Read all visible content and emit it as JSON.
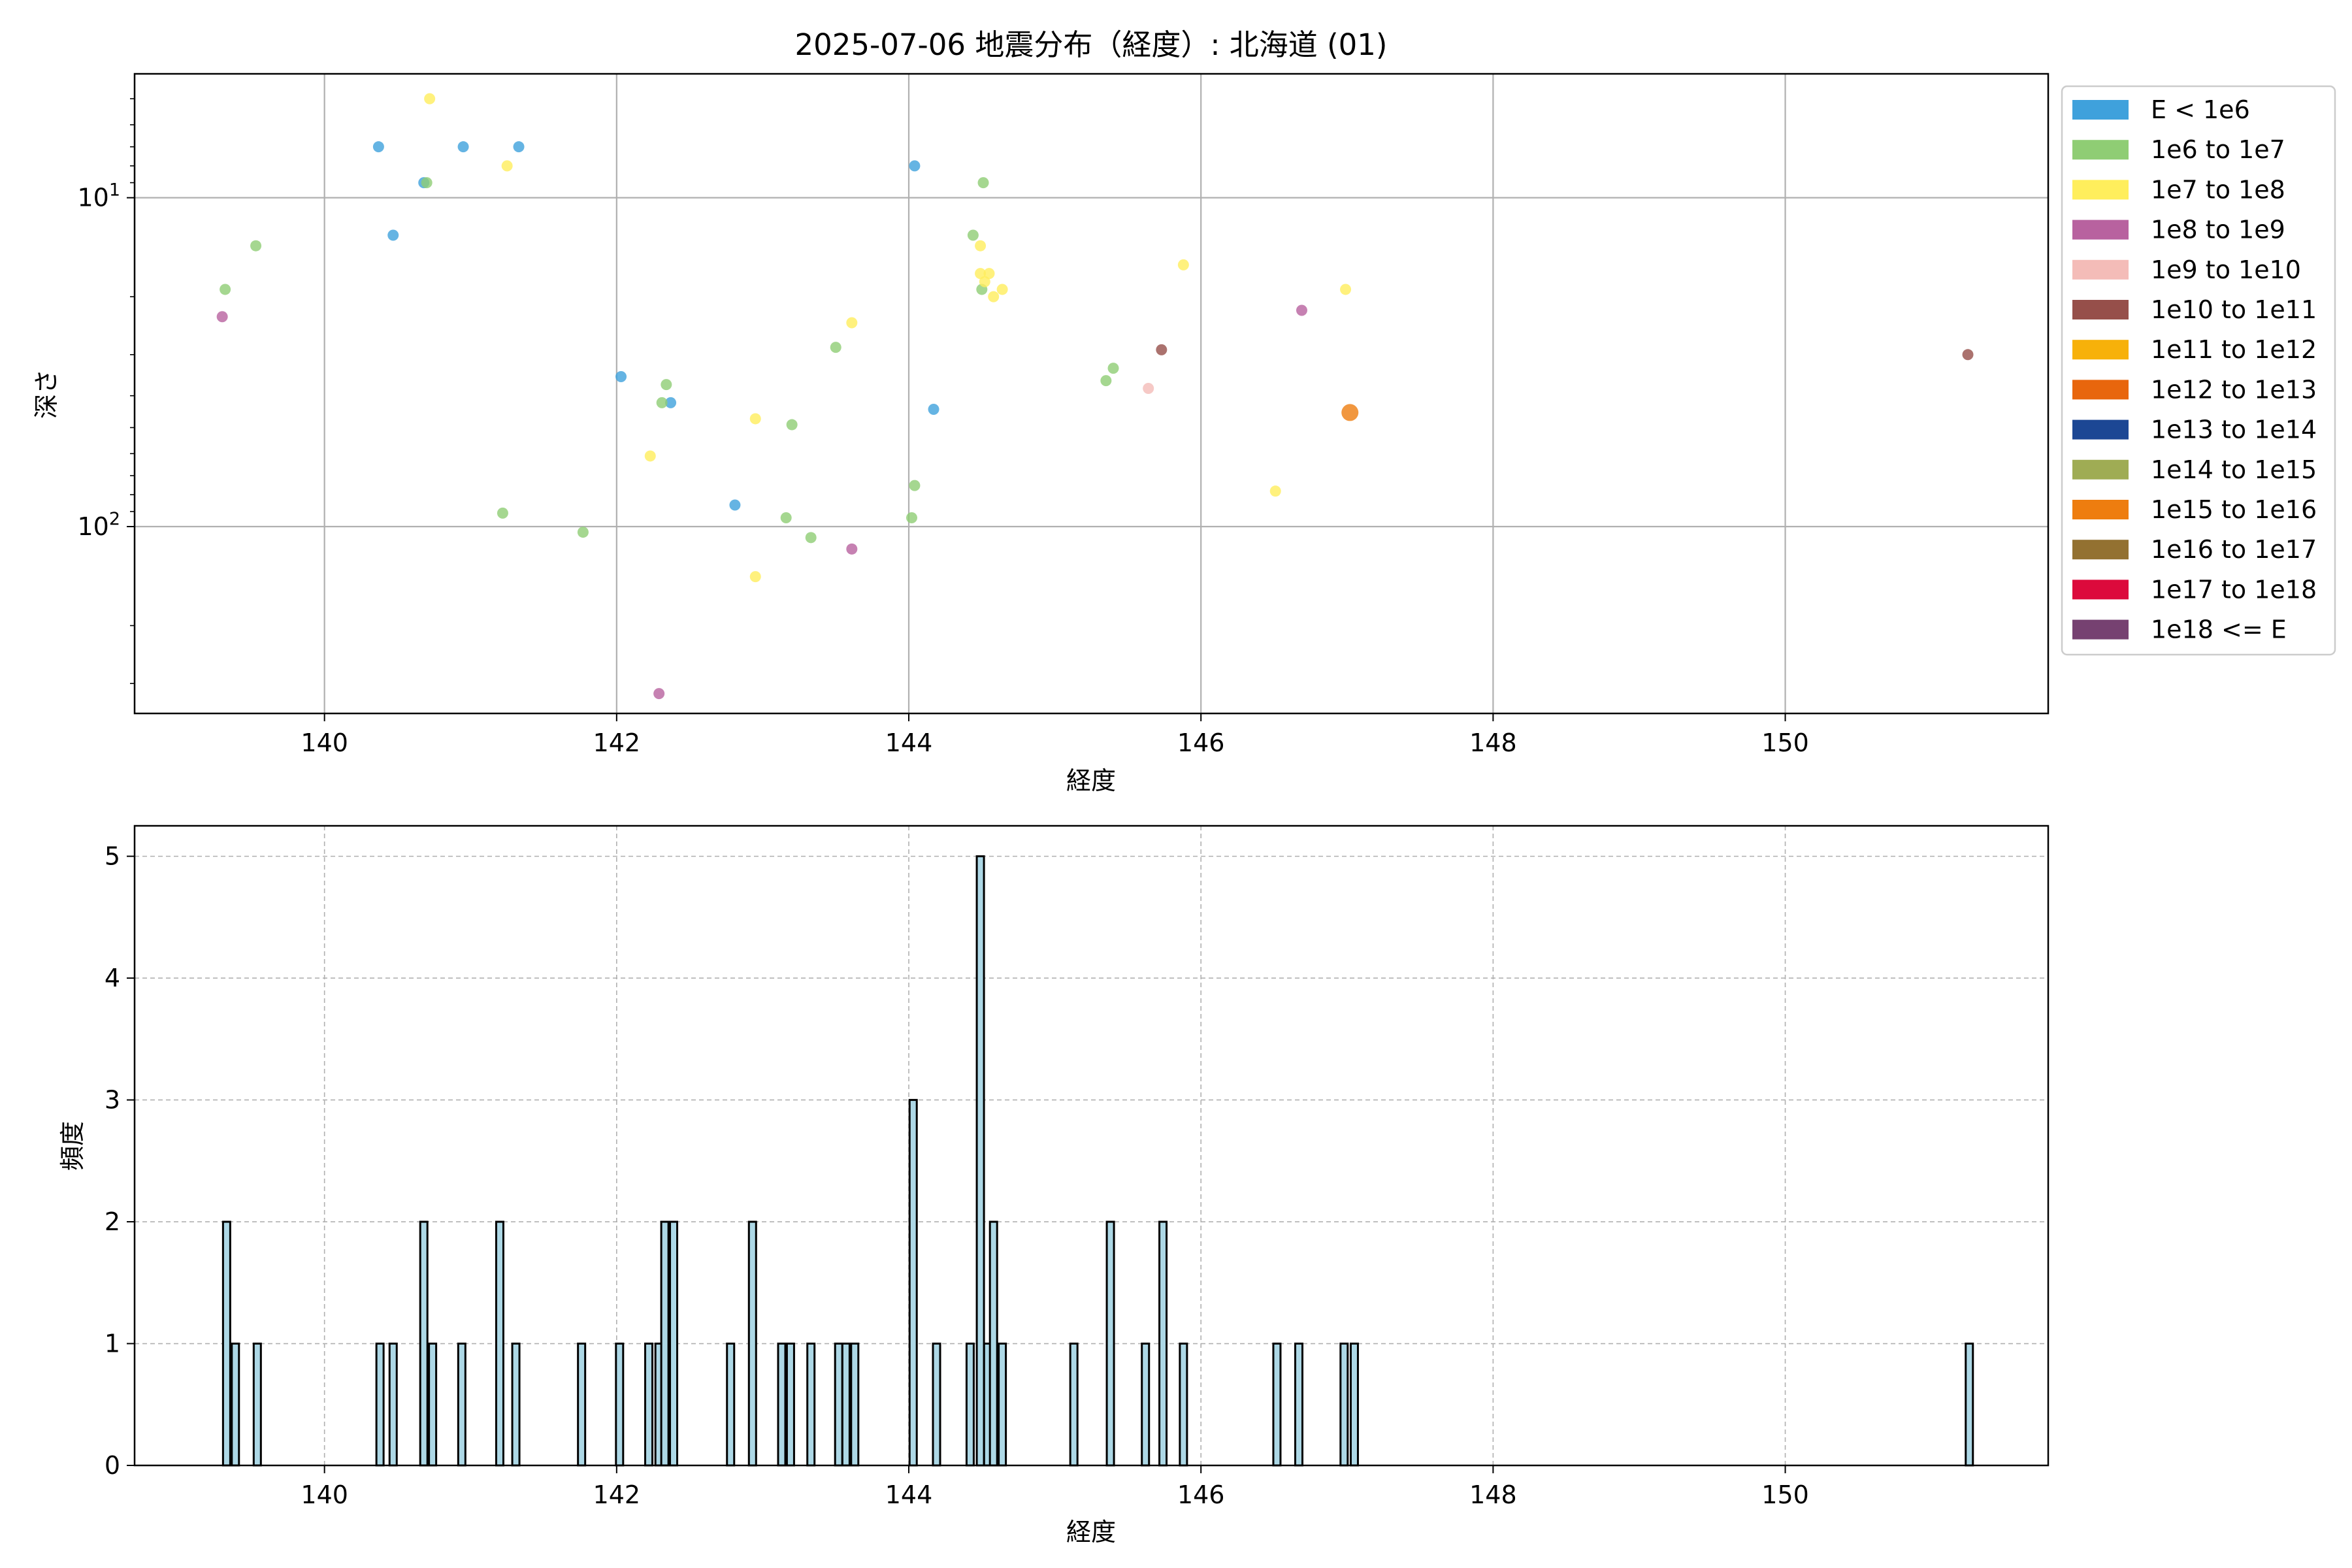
{
  "chart_data": [
    {
      "type": "scatter",
      "title": "2025-07-06 地震分布（経度）: 北海道 (01)",
      "xlabel": "経度",
      "ylabel": "深さ",
      "xlim": [
        138.7,
        151.8
      ],
      "ylim": [
        370,
        4.2
      ],
      "y_scale": "log",
      "y_inverted": true,
      "xticks": [
        140,
        142,
        144,
        146,
        148,
        150
      ],
      "yticks": [
        {
          "value": 10,
          "base": "10",
          "exp": "1"
        },
        {
          "value": 100,
          "base": "10",
          "exp": "2"
        }
      ],
      "grid": true,
      "legend_position": "outside-right",
      "legend": [
        {
          "label": "E < 1e6",
          "color": "#3fa1dc"
        },
        {
          "label": "1e6 to 1e7",
          "color": "#8fcd74"
        },
        {
          "label": "1e7 to 1e8",
          "color": "#ffee5c"
        },
        {
          "label": "1e8 to 1e9",
          "color": "#b8629f"
        },
        {
          "label": "1e9 to 1e10",
          "color": "#f4bcb8"
        },
        {
          "label": "1e10 to 1e11",
          "color": "#964f4a"
        },
        {
          "label": "1e11 to 1e12",
          "color": "#f7b10a"
        },
        {
          "label": "1e12 to 1e13",
          "color": "#e8660d"
        },
        {
          "label": "1e13 to 1e14",
          "color": "#1c4794"
        },
        {
          "label": "1e14 to 1e15",
          "color": "#9fac54"
        },
        {
          "label": "1e15 to 1e16",
          "color": "#ee7d0f"
        },
        {
          "label": "1e16 to 1e17",
          "color": "#937131"
        },
        {
          "label": "1e17 to 1e18",
          "color": "#dc0a3c"
        },
        {
          "label": "1e18 <= E",
          "color": "#764171"
        }
      ],
      "points": [
        {
          "x": 140.37,
          "y": 7,
          "c": 0
        },
        {
          "x": 140.68,
          "y": 9,
          "c": 0
        },
        {
          "x": 140.47,
          "y": 13,
          "c": 0
        },
        {
          "x": 140.95,
          "y": 7,
          "c": 0
        },
        {
          "x": 141.33,
          "y": 7,
          "c": 0
        },
        {
          "x": 144.04,
          "y": 8,
          "c": 0
        },
        {
          "x": 142.03,
          "y": 35,
          "c": 0
        },
        {
          "x": 142.37,
          "y": 42,
          "c": 0
        },
        {
          "x": 144.17,
          "y": 44,
          "c": 0
        },
        {
          "x": 142.81,
          "y": 86,
          "c": 0
        },
        {
          "x": 139.32,
          "y": 19,
          "c": 1
        },
        {
          "x": 139.53,
          "y": 14,
          "c": 1
        },
        {
          "x": 140.7,
          "y": 9,
          "c": 1
        },
        {
          "x": 144.51,
          "y": 9,
          "c": 1
        },
        {
          "x": 144.44,
          "y": 13,
          "c": 1
        },
        {
          "x": 144.5,
          "y": 19,
          "c": 1
        },
        {
          "x": 143.5,
          "y": 28.5,
          "c": 1
        },
        {
          "x": 142.34,
          "y": 37,
          "c": 1
        },
        {
          "x": 142.31,
          "y": 42,
          "c": 1
        },
        {
          "x": 145.35,
          "y": 36,
          "c": 1
        },
        {
          "x": 145.4,
          "y": 33,
          "c": 1
        },
        {
          "x": 143.2,
          "y": 49,
          "c": 1
        },
        {
          "x": 141.22,
          "y": 91,
          "c": 1
        },
        {
          "x": 141.77,
          "y": 104,
          "c": 1
        },
        {
          "x": 143.16,
          "y": 94,
          "c": 1
        },
        {
          "x": 143.33,
          "y": 108,
          "c": 1
        },
        {
          "x": 144.04,
          "y": 75,
          "c": 1
        },
        {
          "x": 144.02,
          "y": 94,
          "c": 1
        },
        {
          "x": 140.72,
          "y": 5,
          "c": 2
        },
        {
          "x": 141.25,
          "y": 8,
          "c": 2
        },
        {
          "x": 144.49,
          "y": 14,
          "c": 2
        },
        {
          "x": 144.49,
          "y": 17,
          "c": 2
        },
        {
          "x": 144.55,
          "y": 17,
          "c": 2
        },
        {
          "x": 144.52,
          "y": 18,
          "c": 2
        },
        {
          "x": 144.58,
          "y": 20,
          "c": 2
        },
        {
          "x": 144.64,
          "y": 19,
          "c": 2
        },
        {
          "x": 145.88,
          "y": 16,
          "c": 2
        },
        {
          "x": 146.99,
          "y": 19,
          "c": 2
        },
        {
          "x": 143.61,
          "y": 24,
          "c": 2
        },
        {
          "x": 142.95,
          "y": 47,
          "c": 2
        },
        {
          "x": 142.23,
          "y": 61,
          "c": 2
        },
        {
          "x": 146.51,
          "y": 78,
          "c": 2
        },
        {
          "x": 142.95,
          "y": 142,
          "c": 2
        },
        {
          "x": 139.3,
          "y": 23,
          "c": 3
        },
        {
          "x": 146.69,
          "y": 22,
          "c": 3
        },
        {
          "x": 143.61,
          "y": 117,
          "c": 3
        },
        {
          "x": 142.29,
          "y": 322,
          "c": 3
        },
        {
          "x": 145.64,
          "y": 38,
          "c": 4
        },
        {
          "x": 145.73,
          "y": 29,
          "c": 5
        },
        {
          "x": 151.25,
          "y": 30,
          "c": 5
        },
        {
          "x": 147.02,
          "y": 45,
          "c": 10,
          "big": true
        }
      ]
    },
    {
      "type": "bar",
      "title": "",
      "xlabel": "経度",
      "ylabel": "頻度",
      "xlim": [
        138.7,
        151.8
      ],
      "ylim": [
        0,
        5.25
      ],
      "xticks": [
        140,
        142,
        144,
        146,
        148,
        150
      ],
      "yticks": [
        0,
        1,
        2,
        3,
        4,
        5
      ],
      "grid": true,
      "bar_color": "#add8e6",
      "bar_edge_color": "#000000",
      "bins": [
        [
          139.33,
          2
        ],
        [
          139.39,
          1
        ],
        [
          139.54,
          1
        ],
        [
          140.38,
          1
        ],
        [
          140.47,
          1
        ],
        [
          140.68,
          2
        ],
        [
          140.74,
          1
        ],
        [
          140.94,
          1
        ],
        [
          141.2,
          2
        ],
        [
          141.31,
          1
        ],
        [
          141.76,
          1
        ],
        [
          142.02,
          1
        ],
        [
          142.22,
          1
        ],
        [
          142.29,
          1
        ],
        [
          142.33,
          2
        ],
        [
          142.39,
          2
        ],
        [
          142.78,
          1
        ],
        [
          142.93,
          2
        ],
        [
          143.13,
          1
        ],
        [
          143.19,
          1
        ],
        [
          143.33,
          1
        ],
        [
          143.52,
          1
        ],
        [
          143.57,
          1
        ],
        [
          143.63,
          1
        ],
        [
          144.03,
          3
        ],
        [
          144.19,
          1
        ],
        [
          144.42,
          1
        ],
        [
          144.49,
          5
        ],
        [
          144.54,
          1
        ],
        [
          144.58,
          2
        ],
        [
          144.64,
          1
        ],
        [
          145.13,
          1
        ],
        [
          145.38,
          2
        ],
        [
          145.62,
          1
        ],
        [
          145.74,
          2
        ],
        [
          145.88,
          1
        ],
        [
          146.52,
          1
        ],
        [
          146.67,
          1
        ],
        [
          146.98,
          1
        ],
        [
          147.05,
          1
        ],
        [
          151.26,
          1
        ]
      ]
    }
  ]
}
